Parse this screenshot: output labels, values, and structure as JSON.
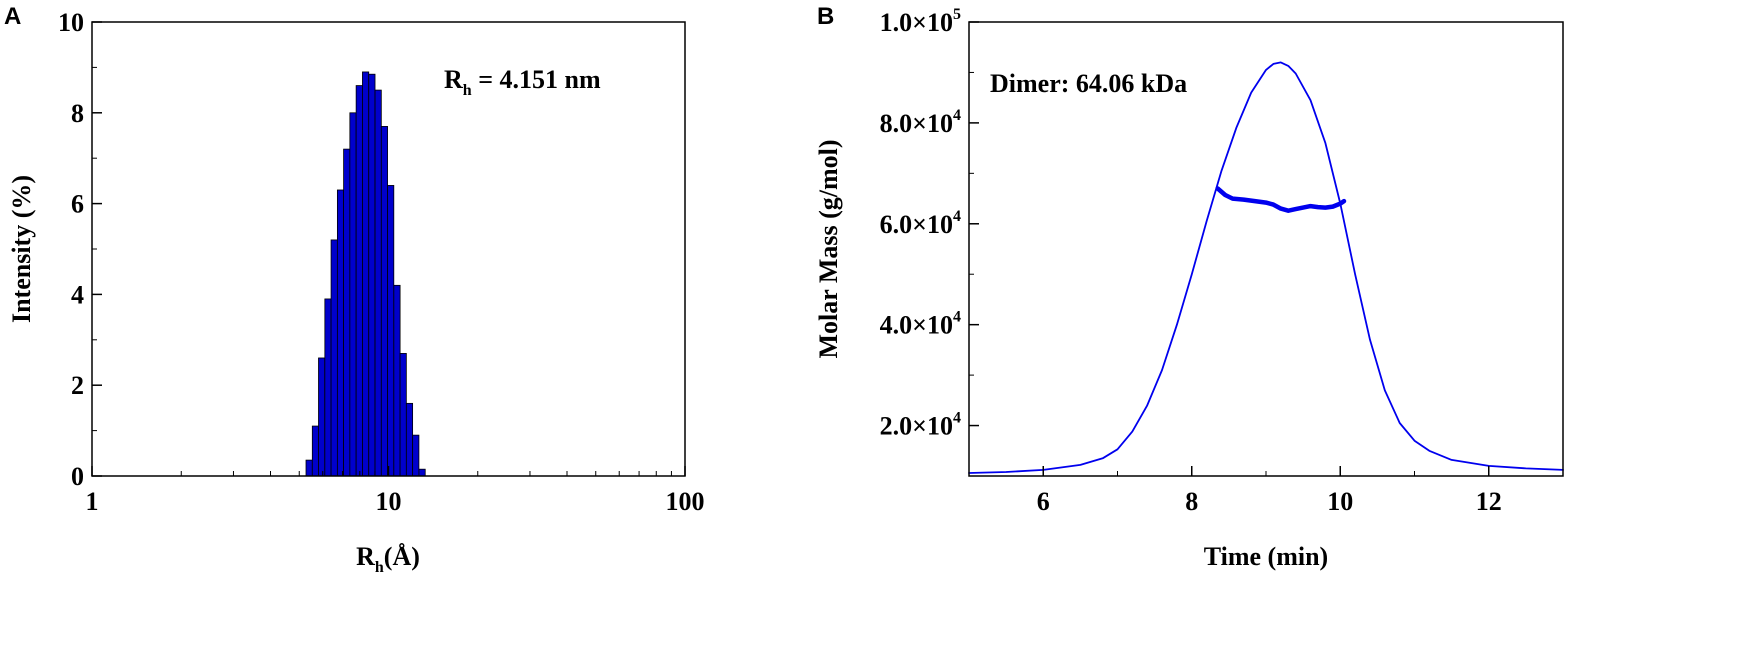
{
  "chart_data": [
    {
      "panel_label": "A",
      "type": "bar",
      "x_scale": "log",
      "xlim": [
        1,
        100
      ],
      "ylim": [
        0,
        10
      ],
      "xlabel_main": "R",
      "xlabel_sub": "h",
      "xlabel_rest": "(Å)",
      "ylabel": "Intensity (%)",
      "x_ticks": [
        1,
        10,
        100
      ],
      "x_tick_labels": [
        "1",
        "10",
        "100"
      ],
      "y_ticks": [
        0,
        2,
        4,
        6,
        8,
        10
      ],
      "y_tick_labels": [
        "0",
        "2",
        "4",
        "6",
        "8",
        "10"
      ],
      "annotation": {
        "main": "R",
        "sub": "h",
        "rest": " = 4.151 nm"
      },
      "color": "#0000cc",
      "bins": [
        [
          5.4,
          0.35
        ],
        [
          5.67,
          1.1
        ],
        [
          5.95,
          2.6
        ],
        [
          6.25,
          3.9
        ],
        [
          6.56,
          5.2
        ],
        [
          6.89,
          6.3
        ],
        [
          7.23,
          7.2
        ],
        [
          7.59,
          8.0
        ],
        [
          7.97,
          8.6
        ],
        [
          8.37,
          8.9
        ],
        [
          8.79,
          8.85
        ],
        [
          9.23,
          8.5
        ],
        [
          9.69,
          7.7
        ],
        [
          10.17,
          6.4
        ],
        [
          10.68,
          4.2
        ],
        [
          11.21,
          2.7
        ],
        [
          11.77,
          1.6
        ],
        [
          12.36,
          0.9
        ],
        [
          12.98,
          0.15
        ]
      ]
    },
    {
      "panel_label": "B",
      "type": "line",
      "xlim": [
        5,
        13
      ],
      "ylim": [
        10000,
        100000
      ],
      "xlabel": "Time (min)",
      "ylabel": "Molar Mass (g/mol)",
      "x_ticks": [
        6,
        8,
        10,
        12
      ],
      "x_tick_labels": [
        "6",
        "8",
        "10",
        "12"
      ],
      "y_ticks": [
        20000,
        40000,
        60000,
        80000,
        100000
      ],
      "y_tick_labels": [
        {
          "mant": "2.0×10",
          "exp": "4"
        },
        {
          "mant": "4.0×10",
          "exp": "4"
        },
        {
          "mant": "6.0×10",
          "exp": "4"
        },
        {
          "mant": "8.0×10",
          "exp": "4"
        },
        {
          "mant": "1.0×10",
          "exp": "5"
        }
      ],
      "annotation": "Dimer: 64.06 kDa",
      "color": "#0000ee",
      "series": [
        {
          "role": "signal",
          "x": [
            5.0,
            5.5,
            6.0,
            6.5,
            6.8,
            7.0,
            7.2,
            7.4,
            7.6,
            7.8,
            8.0,
            8.2,
            8.4,
            8.6,
            8.8,
            9.0,
            9.1,
            9.2,
            9.3,
            9.4,
            9.6,
            9.8,
            10.0,
            10.2,
            10.4,
            10.6,
            10.8,
            11.0,
            11.2,
            11.5,
            12.0,
            12.5,
            13.0
          ],
          "y": [
            10600,
            10800,
            11200,
            12200,
            13500,
            15300,
            18800,
            24000,
            31000,
            40000,
            50000,
            60500,
            70500,
            79000,
            86000,
            90500,
            91700,
            92000,
            91300,
            89800,
            84500,
            76000,
            64000,
            50000,
            37000,
            27000,
            20500,
            17000,
            15000,
            13200,
            12000,
            11500,
            11200
          ]
        },
        {
          "role": "molar-mass",
          "x": [
            8.35,
            8.45,
            8.55,
            8.7,
            8.85,
            9.0,
            9.1,
            9.2,
            9.3,
            9.4,
            9.5,
            9.6,
            9.7,
            9.8,
            9.9,
            10.0,
            10.05
          ],
          "y": [
            67000,
            65700,
            65000,
            64800,
            64500,
            64200,
            63800,
            63000,
            62600,
            62900,
            63200,
            63500,
            63300,
            63200,
            63400,
            64000,
            64500
          ]
        }
      ]
    }
  ]
}
